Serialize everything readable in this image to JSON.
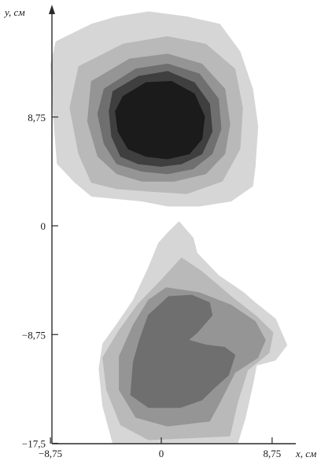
{
  "chart_data": {
    "type": "contour",
    "xlabel": "x, см",
    "ylabel": "y, см",
    "x_ticks": [
      {
        "value": -8.75,
        "label": "−8,75"
      },
      {
        "value": 0,
        "label": "0"
      },
      {
        "value": 8.75,
        "label": "8,75"
      }
    ],
    "y_ticks": [
      {
        "value": 8.75,
        "label": "8,75"
      },
      {
        "value": 0,
        "label": "0"
      },
      {
        "value": -8.75,
        "label": "−8,75"
      },
      {
        "value": -17.5,
        "label": "−17,5"
      }
    ],
    "xlim": [
      -8.75,
      8.75
    ],
    "ylim": [
      -17.5,
      17.5
    ],
    "grid": false,
    "level_colors": [
      "#d6d6d6",
      "#b9b9b9",
      "#959595",
      "#6f6f6f",
      "#3f3f3f",
      "#1b1b1b"
    ],
    "regions": [
      {
        "levels": [
          {
            "level": 1,
            "points": [
              [
                -8.3,
                14.8
              ],
              [
                -5.5,
                16.2
              ],
              [
                -3.5,
                16.8
              ],
              [
                -1,
                17.2
              ],
              [
                2,
                16.8
              ],
              [
                4.6,
                16.2
              ],
              [
                6.2,
                14
              ],
              [
                7.2,
                11
              ],
              [
                7.6,
                8
              ],
              [
                7.4,
                4.8
              ],
              [
                7.2,
                3.2
              ],
              [
                5.5,
                2
              ],
              [
                3,
                1.6
              ],
              [
                0.5,
                1.6
              ],
              [
                -1.5,
                2
              ],
              [
                -3.5,
                2.2
              ],
              [
                -5.5,
                2.4
              ],
              [
                -6.8,
                3.5
              ],
              [
                -8.2,
                5
              ],
              [
                -8.5,
                9
              ],
              [
                -8.7,
                13
              ]
            ]
          },
          {
            "level": 2,
            "points": [
              [
                -6.5,
                12.8
              ],
              [
                -3,
                14.6
              ],
              [
                0.5,
                15.2
              ],
              [
                3.5,
                14.6
              ],
              [
                5.8,
                12.6
              ],
              [
                6.4,
                9.5
              ],
              [
                6.2,
                6.2
              ],
              [
                4.8,
                3.6
              ],
              [
                2,
                2.6
              ],
              [
                -1,
                2.8
              ],
              [
                -3.5,
                3
              ],
              [
                -5.5,
                3.5
              ],
              [
                -6.5,
                5.8
              ],
              [
                -7.2,
                9.5
              ]
            ]
          },
          {
            "level": 3,
            "points": [
              [
                -5.5,
                11.6
              ],
              [
                -2.5,
                13.4
              ],
              [
                0.5,
                13.8
              ],
              [
                3.2,
                13
              ],
              [
                5,
                11
              ],
              [
                5.4,
                8.2
              ],
              [
                5,
                5.8
              ],
              [
                3.5,
                4.2
              ],
              [
                1,
                3.6
              ],
              [
                -1.5,
                3.6
              ],
              [
                -3.5,
                4.2
              ],
              [
                -5,
                5.6
              ],
              [
                -5.8,
                8.4
              ]
            ]
          },
          {
            "level": 4,
            "points": [
              [
                -4.5,
                11
              ],
              [
                -2,
                12.6
              ],
              [
                0.5,
                13
              ],
              [
                3,
                12.2
              ],
              [
                4.5,
                10.2
              ],
              [
                4.7,
                7.8
              ],
              [
                4,
                5.8
              ],
              [
                2.5,
                4.6
              ],
              [
                0.5,
                4.2
              ],
              [
                -1.5,
                4.4
              ],
              [
                -3.5,
                5
              ],
              [
                -4.5,
                6.6
              ],
              [
                -5,
                9
              ]
            ]
          },
          {
            "level": 5,
            "points": [
              [
                -3.8,
                10.8
              ],
              [
                -1.8,
                12
              ],
              [
                0.5,
                12.4
              ],
              [
                2.6,
                11.5
              ],
              [
                3.8,
                9.8
              ],
              [
                4,
                7.6
              ],
              [
                3.2,
                5.8
              ],
              [
                1.6,
                5
              ],
              [
                0,
                4.8
              ],
              [
                -1.8,
                5
              ],
              [
                -3.2,
                5.6
              ],
              [
                -3.9,
                7.2
              ],
              [
                -4.1,
                9.2
              ]
            ]
          },
          {
            "level": 6,
            "points": [
              [
                -3,
                10.4
              ],
              [
                -1.2,
                11.5
              ],
              [
                0.8,
                11.6
              ],
              [
                2.6,
                10.6
              ],
              [
                3.4,
                8.8
              ],
              [
                3.2,
                7
              ],
              [
                2.2,
                5.8
              ],
              [
                0.5,
                5.4
              ],
              [
                -1.2,
                5.6
              ],
              [
                -2.6,
                6.2
              ],
              [
                -3.4,
                7.6
              ],
              [
                -3.6,
                9.2
              ]
            ]
          }
        ]
      },
      {
        "levels": [
          {
            "level": 1,
            "points": [
              [
                1.4,
                0.3
              ],
              [
                2.5,
                -1
              ],
              [
                2.8,
                -2.2
              ],
              [
                4.5,
                -4
              ],
              [
                6.5,
                -5.4
              ],
              [
                7.4,
                -6.2
              ],
              [
                9,
                -7.5
              ],
              [
                9.9,
                -9.6
              ],
              [
                9,
                -10.8
              ],
              [
                7.5,
                -11.2
              ],
              [
                7.2,
                -12.8
              ],
              [
                6.6,
                -15.5
              ],
              [
                6,
                -17.5
              ],
              [
                -3.8,
                -17.5
              ],
              [
                -4.6,
                -14.5
              ],
              [
                -4.9,
                -11.5
              ],
              [
                -4.6,
                -9.5
              ],
              [
                -3.4,
                -7.8
              ],
              [
                -2.2,
                -6
              ],
              [
                -1,
                -3.4
              ],
              [
                -0.2,
                -1.4
              ],
              [
                0.6,
                -0.5
              ]
            ]
          },
          {
            "level": 2,
            "points": [
              [
                1.6,
                -2.6
              ],
              [
                3.2,
                -3.7
              ],
              [
                5.5,
                -5.7
              ],
              [
                7.5,
                -7.3
              ],
              [
                8.8,
                -8.6
              ],
              [
                8.5,
                -10.2
              ],
              [
                6.8,
                -11.6
              ],
              [
                6,
                -14.2
              ],
              [
                5.4,
                -16.9
              ],
              [
                -1,
                -17.2
              ],
              [
                -3.2,
                -16
              ],
              [
                -4.3,
                -13.2
              ],
              [
                -4.6,
                -10.6
              ],
              [
                -3.3,
                -8.4
              ],
              [
                -1.8,
                -6.3
              ],
              [
                0,
                -4.4
              ]
            ]
          },
          {
            "level": 3,
            "points": [
              [
                0.4,
                -5
              ],
              [
                3,
                -5.4
              ],
              [
                5.5,
                -6.4
              ],
              [
                7.4,
                -7.7
              ],
              [
                8.2,
                -9.2
              ],
              [
                7.6,
                -10.6
              ],
              [
                5.8,
                -11.8
              ],
              [
                4.6,
                -14.2
              ],
              [
                3.8,
                -15.7
              ],
              [
                0.5,
                -16.1
              ],
              [
                -2,
                -15.4
              ],
              [
                -3.3,
                -13.2
              ],
              [
                -3.3,
                -10.5
              ],
              [
                -2.2,
                -8
              ],
              [
                -1,
                -6
              ]
            ]
          },
          {
            "level": 4,
            "points": [
              [
                0.6,
                -5.7
              ],
              [
                2.4,
                -5.6
              ],
              [
                3.8,
                -6.2
              ],
              [
                4,
                -7.2
              ],
              [
                2.8,
                -8.6
              ],
              [
                2.1,
                -9.2
              ],
              [
                3.5,
                -9.6
              ],
              [
                5,
                -9.8
              ],
              [
                5.8,
                -10.4
              ],
              [
                5.3,
                -12
              ],
              [
                4.2,
                -13
              ],
              [
                3.2,
                -14
              ],
              [
                1.5,
                -14.6
              ],
              [
                -1,
                -14.6
              ],
              [
                -2.4,
                -13.6
              ],
              [
                -2.2,
                -11
              ],
              [
                -1.7,
                -9.2
              ],
              [
                -1,
                -7.2
              ]
            ]
          }
        ]
      }
    ]
  }
}
